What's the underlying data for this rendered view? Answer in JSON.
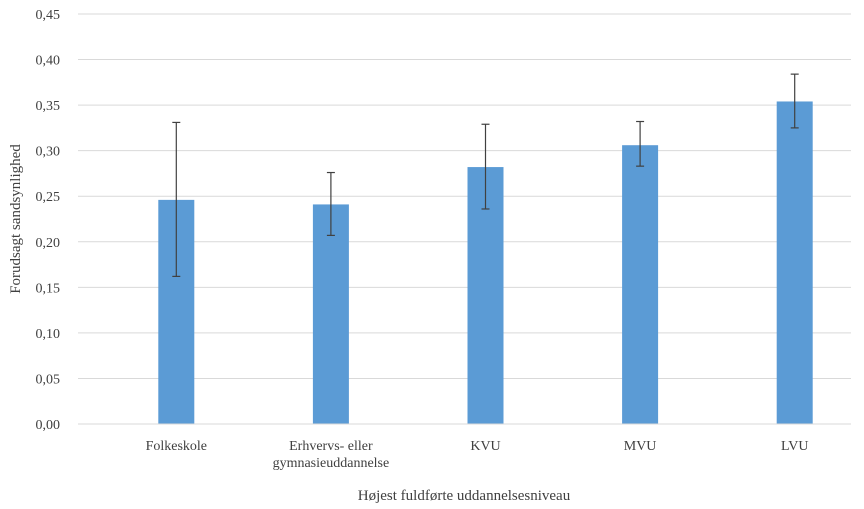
{
  "chart_data": {
    "type": "bar",
    "title": "",
    "xlabel": "Højest fuldførte uddannelsesniveau",
    "ylabel": "Forudsagt sandsynlighed",
    "categories": [
      [
        "Folkeskole"
      ],
      [
        "Erhvervs- eller",
        "gymnasieuddannelse"
      ],
      [
        "KVU"
      ],
      [
        "MVU"
      ],
      [
        "LVU"
      ]
    ],
    "values": [
      0.246,
      0.241,
      0.282,
      0.306,
      0.354
    ],
    "error_low": [
      0.162,
      0.207,
      0.236,
      0.283,
      0.325
    ],
    "error_high": [
      0.331,
      0.276,
      0.329,
      0.332,
      0.384
    ],
    "ylim": [
      0,
      0.45
    ],
    "yticks": [
      "0,00",
      "0,05",
      "0,10",
      "0,15",
      "0,20",
      "0,25",
      "0,30",
      "0,35",
      "0,40",
      "0,45"
    ],
    "ytick_values": [
      0,
      0.05,
      0.1,
      0.15,
      0.2,
      0.25,
      0.3,
      0.35,
      0.4,
      0.45
    ],
    "grid": true,
    "legend": "none",
    "bar_color": "#5B9BD5",
    "grid_color": "#D9D9D9",
    "error_bar_color": "#404040"
  }
}
